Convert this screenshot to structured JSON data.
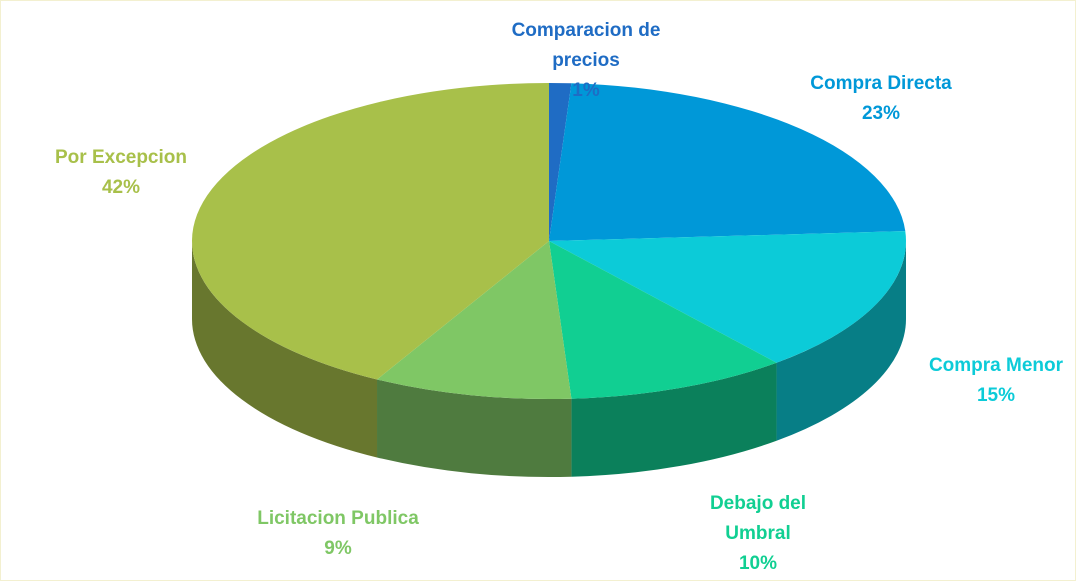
{
  "chart_data": {
    "type": "pie",
    "categories": [
      "Comparacion de precios",
      "Compra Directa",
      "Compra Menor",
      "Debajo del Umbral",
      "Licitacion Publica",
      "Por Excepcion"
    ],
    "values": [
      1,
      23,
      15,
      10,
      9,
      42
    ],
    "value_labels": [
      "1%",
      "23%",
      "15%",
      "10%",
      "9%",
      "42%"
    ],
    "colors": [
      "#1f6cc4",
      "#0098d8",
      "#0ccbd8",
      "#11cf92",
      "#7fc765",
      "#a8c04a"
    ]
  }
}
